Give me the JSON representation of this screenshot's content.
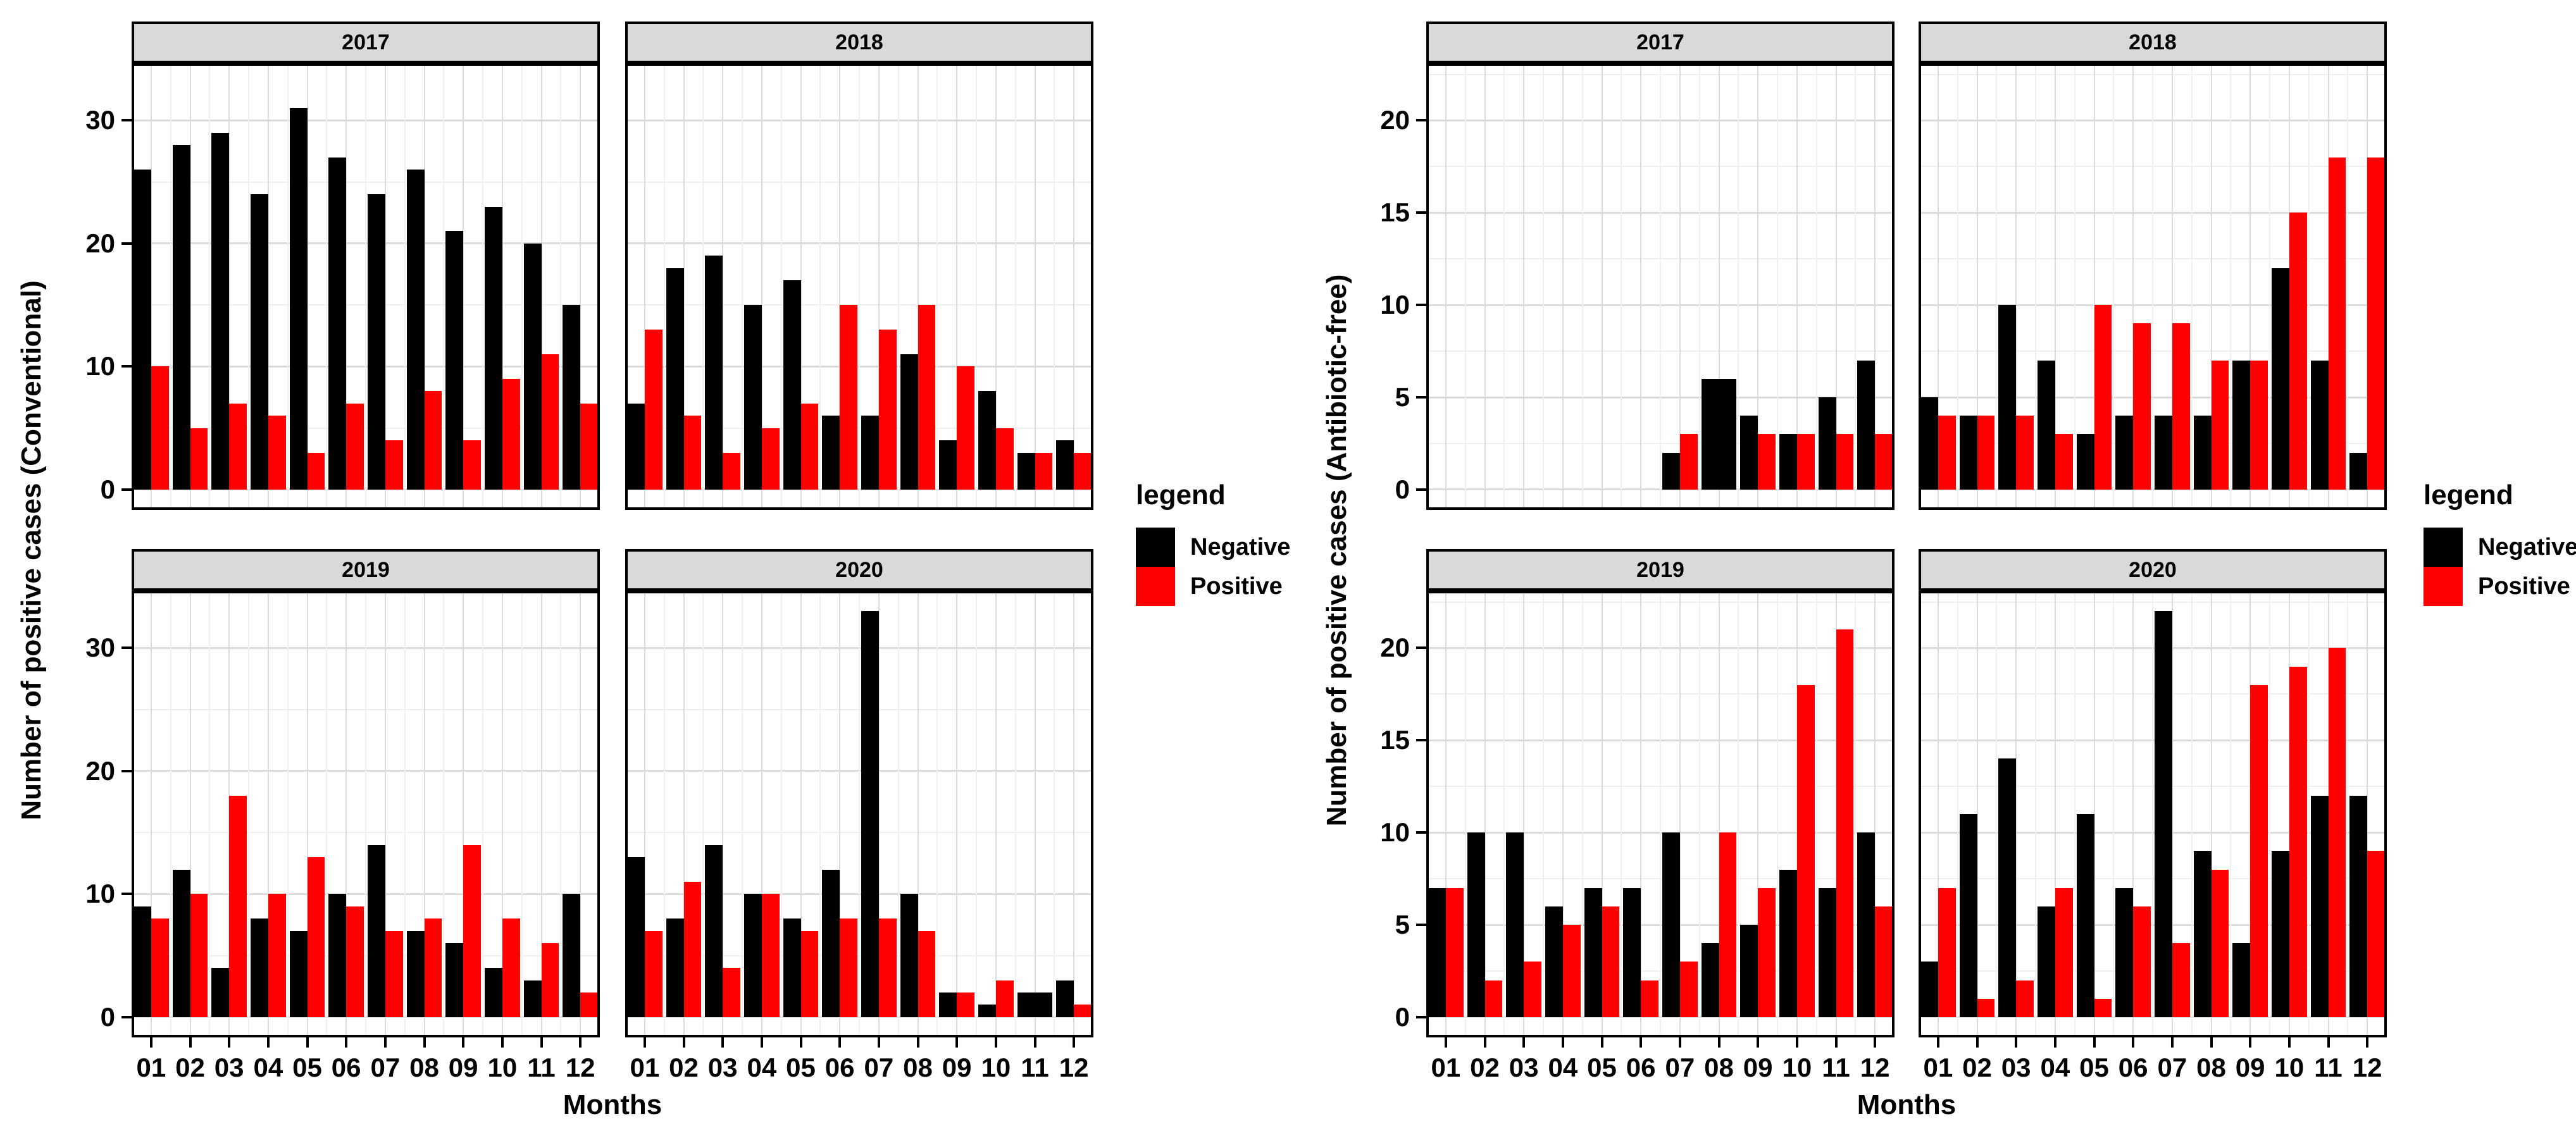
{
  "figure": {
    "background": "#ffffff",
    "months_axis_title": "Months"
  },
  "legend": {
    "title": "legend",
    "items": [
      {
        "label": "Negative",
        "color": "#000000"
      },
      {
        "label": "Positive",
        "color": "#FF0000"
      }
    ]
  },
  "colors": {
    "negative": "#000000",
    "positive": "#FF0000",
    "strip_background": "#D9D9D9",
    "panel_border": "#000000",
    "grid_major": "#DBDBDB",
    "grid_minor": "#F0F0F0",
    "text": "#000000"
  },
  "chart_data": [
    {
      "id": "conventional",
      "type": "bar",
      "title": "",
      "xlabel": "Months",
      "ylabel": "Number of positive cases (Conventional)",
      "categories": [
        "01",
        "02",
        "03",
        "04",
        "05",
        "06",
        "07",
        "08",
        "09",
        "10",
        "11",
        "12"
      ],
      "yticks": [
        0,
        10,
        20,
        30
      ],
      "minor_step": 5,
      "ylim": [
        0,
        33
      ],
      "grid": true,
      "legend_position": "right",
      "facets": [
        {
          "label": "2017",
          "series": [
            {
              "name": "Negative",
              "values": [
                26,
                28,
                29,
                24,
                31,
                27,
                24,
                26,
                21,
                23,
                20,
                15
              ]
            },
            {
              "name": "Positive",
              "values": [
                10,
                5,
                7,
                6,
                3,
                7,
                4,
                8,
                4,
                9,
                11,
                7
              ]
            }
          ]
        },
        {
          "label": "2018",
          "series": [
            {
              "name": "Negative",
              "values": [
                7,
                18,
                19,
                15,
                17,
                6,
                6,
                11,
                4,
                8,
                3,
                4
              ]
            },
            {
              "name": "Positive",
              "values": [
                13,
                6,
                3,
                5,
                7,
                15,
                13,
                15,
                10,
                5,
                3,
                3
              ]
            }
          ]
        },
        {
          "label": "2019",
          "series": [
            {
              "name": "Negative",
              "values": [
                9,
                12,
                4,
                8,
                7,
                10,
                14,
                7,
                6,
                4,
                3,
                10
              ]
            },
            {
              "name": "Positive",
              "values": [
                8,
                10,
                18,
                10,
                13,
                9,
                7,
                8,
                14,
                8,
                6,
                2
              ]
            }
          ]
        },
        {
          "label": "2020",
          "series": [
            {
              "name": "Negative",
              "values": [
                13,
                8,
                14,
                10,
                8,
                12,
                33,
                10,
                2,
                1,
                2,
                3
              ]
            },
            {
              "name": "Positive",
              "values": [
                7,
                11,
                4,
                10,
                7,
                8,
                8,
                7,
                2,
                3,
                null,
                1
              ]
            }
          ]
        }
      ]
    },
    {
      "id": "antibiotic-free",
      "type": "bar",
      "title": "",
      "xlabel": "Months",
      "ylabel": "Number of positive cases (Antibiotic-free)",
      "categories": [
        "01",
        "02",
        "03",
        "04",
        "05",
        "06",
        "07",
        "08",
        "09",
        "10",
        "11",
        "12"
      ],
      "yticks": [
        0,
        5,
        10,
        15,
        20
      ],
      "minor_step": 2.5,
      "ylim": [
        0,
        22
      ],
      "grid": true,
      "legend_position": "right",
      "facets": [
        {
          "label": "2017",
          "series": [
            {
              "name": "Negative",
              "values": [
                null,
                null,
                null,
                null,
                null,
                null,
                2,
                6,
                4,
                3,
                5,
                7
              ]
            },
            {
              "name": "Positive",
              "values": [
                null,
                null,
                null,
                null,
                null,
                null,
                3,
                null,
                3,
                3,
                3,
                3
              ]
            }
          ]
        },
        {
          "label": "2018",
          "series": [
            {
              "name": "Negative",
              "values": [
                5,
                4,
                10,
                7,
                3,
                4,
                4,
                4,
                7,
                12,
                7,
                2
              ]
            },
            {
              "name": "Positive",
              "values": [
                4,
                4,
                4,
                3,
                10,
                9,
                9,
                7,
                7,
                15,
                18,
                18
              ]
            }
          ]
        },
        {
          "label": "2019",
          "series": [
            {
              "name": "Negative",
              "values": [
                7,
                10,
                10,
                6,
                7,
                7,
                10,
                4,
                5,
                8,
                7,
                10
              ]
            },
            {
              "name": "Positive",
              "values": [
                7,
                2,
                3,
                5,
                6,
                2,
                3,
                10,
                7,
                18,
                21,
                6
              ]
            }
          ]
        },
        {
          "label": "2020",
          "series": [
            {
              "name": "Negative",
              "values": [
                3,
                11,
                14,
                6,
                11,
                7,
                22,
                9,
                4,
                9,
                12,
                12
              ]
            },
            {
              "name": "Positive",
              "values": [
                7,
                1,
                2,
                7,
                1,
                6,
                4,
                8,
                18,
                19,
                20,
                9
              ]
            }
          ]
        }
      ]
    }
  ]
}
